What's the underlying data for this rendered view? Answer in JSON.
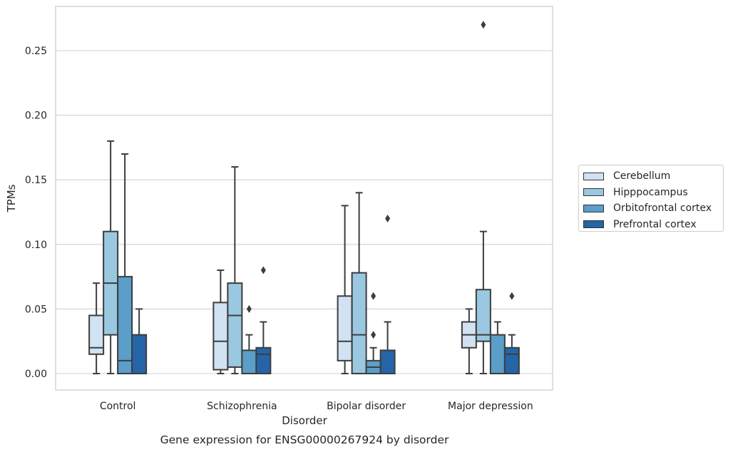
{
  "chart_data": {
    "type": "box",
    "title": "Gene expression for ENSG00000267924 by disorder",
    "xlabel": "Disorder",
    "ylabel": "TPMs",
    "ylim": [
      -0.013,
      0.284
    ],
    "yticks": [
      0.0,
      0.05,
      0.1,
      0.15,
      0.2,
      0.25
    ],
    "ytick_labels": [
      "0.00",
      "0.05",
      "0.10",
      "0.15",
      "0.20",
      "0.25"
    ],
    "grid": true,
    "legend_position": "right",
    "categories": [
      "Control",
      "Schizophrenia",
      "Bipolar disorder",
      "Major depression"
    ],
    "series": [
      {
        "name": "Cerebellum",
        "color": "#d1e2f2",
        "boxes": [
          {
            "min": 0.0,
            "q1": 0.015,
            "median": 0.02,
            "q3": 0.045,
            "max": 0.07,
            "outliers": []
          },
          {
            "min": 0.0,
            "q1": 0.003,
            "median": 0.025,
            "q3": 0.055,
            "max": 0.08,
            "outliers": []
          },
          {
            "min": 0.0,
            "q1": 0.01,
            "median": 0.025,
            "q3": 0.06,
            "max": 0.13,
            "outliers": []
          },
          {
            "min": 0.0,
            "q1": 0.02,
            "median": 0.03,
            "q3": 0.04,
            "max": 0.05,
            "outliers": []
          }
        ]
      },
      {
        "name": "Hipppocampus",
        "color": "#9ac8e0",
        "boxes": [
          {
            "min": 0.0,
            "q1": 0.03,
            "median": 0.07,
            "q3": 0.11,
            "max": 0.18,
            "outliers": []
          },
          {
            "min": 0.0,
            "q1": 0.005,
            "median": 0.045,
            "q3": 0.07,
            "max": 0.16,
            "outliers": []
          },
          {
            "min": 0.0,
            "q1": 0.0,
            "median": 0.03,
            "q3": 0.078,
            "max": 0.14,
            "outliers": []
          },
          {
            "min": 0.0,
            "q1": 0.025,
            "median": 0.03,
            "q3": 0.065,
            "max": 0.11,
            "outliers": [
              0.27
            ]
          }
        ]
      },
      {
        "name": "Orbitofrontal cortex",
        "color": "#5a9ec9",
        "boxes": [
          {
            "min": 0.0,
            "q1": 0.0,
            "median": 0.01,
            "q3": 0.075,
            "max": 0.17,
            "outliers": []
          },
          {
            "min": 0.0,
            "q1": 0.0,
            "median": 0.0,
            "q3": 0.018,
            "max": 0.03,
            "outliers": [
              0.05
            ]
          },
          {
            "min": 0.0,
            "q1": 0.0,
            "median": 0.005,
            "q3": 0.01,
            "max": 0.02,
            "outliers": [
              0.03,
              0.06
            ]
          },
          {
            "min": 0.0,
            "q1": 0.0,
            "median": 0.0,
            "q3": 0.03,
            "max": 0.04,
            "outliers": []
          }
        ]
      },
      {
        "name": "Prefrontal cortex",
        "color": "#2465a8",
        "boxes": [
          {
            "min": 0.0,
            "q1": 0.0,
            "median": 0.0,
            "q3": 0.03,
            "max": 0.05,
            "outliers": []
          },
          {
            "min": 0.0,
            "q1": 0.0,
            "median": 0.015,
            "q3": 0.02,
            "max": 0.04,
            "outliers": [
              0.08
            ]
          },
          {
            "min": 0.0,
            "q1": 0.0,
            "median": 0.0,
            "q3": 0.018,
            "max": 0.04,
            "outliers": [
              0.12
            ]
          },
          {
            "min": 0.0,
            "q1": 0.0,
            "median": 0.015,
            "q3": 0.02,
            "max": 0.03,
            "outliers": [
              0.06
            ]
          }
        ]
      }
    ]
  }
}
